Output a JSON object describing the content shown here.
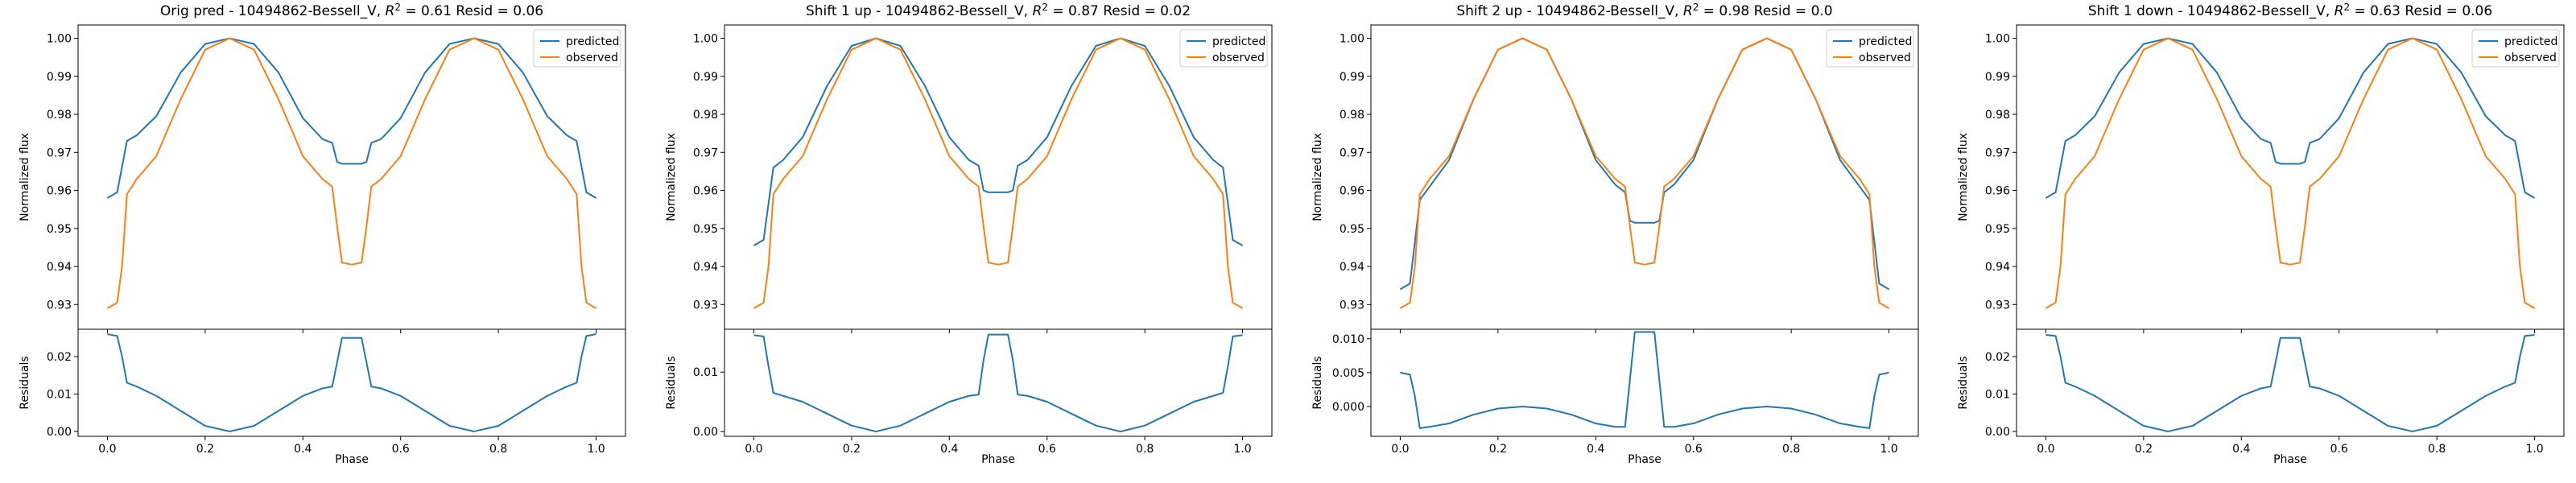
{
  "chart_data": [
    {
      "type": "line",
      "title_prefix": "Orig pred - 10494862-Bessell_V, ",
      "r2_value": "0.61",
      "resid_text": " Resid = 0.06",
      "ylabel": "Normalized flux",
      "ylabel_resid": "Residuals",
      "xlabel": "Phase",
      "xlim": [
        -0.06,
        1.06
      ],
      "ylim": [
        0.9235,
        1.0035
      ],
      "resid_ylim": [
        -0.0013,
        0.0273
      ],
      "yticks": [
        "0.93",
        "0.94",
        "0.95",
        "0.96",
        "0.97",
        "0.98",
        "0.99",
        "1.00"
      ],
      "resid_yticks": [
        "0.00",
        "0.01",
        "0.02"
      ],
      "xticks": [
        "0.0",
        "0.2",
        "0.4",
        "0.6",
        "0.8",
        "1.0"
      ],
      "legend": [
        "predicted",
        "observed"
      ],
      "legend_position": "top-right",
      "series": [
        {
          "name": "predicted",
          "color": "#1f77b4",
          "x": [
            0.0,
            0.02,
            0.04,
            0.06,
            0.1,
            0.15,
            0.2,
            0.25,
            0.3,
            0.35,
            0.4,
            0.44,
            0.46,
            0.47,
            0.48,
            0.5,
            0.52,
            0.53,
            0.54,
            0.56,
            0.6,
            0.65,
            0.7,
            0.75,
            0.8,
            0.85,
            0.9,
            0.94,
            0.96,
            0.98,
            1.0
          ],
          "y": [
            0.958,
            0.9595,
            0.973,
            0.9745,
            0.9795,
            0.991,
            0.9985,
            1.0,
            0.9985,
            0.991,
            0.979,
            0.9735,
            0.9725,
            0.9675,
            0.967,
            0.967,
            0.967,
            0.9675,
            0.9725,
            0.9735,
            0.979,
            0.991,
            0.9985,
            1.0,
            0.9985,
            0.991,
            0.9795,
            0.9745,
            0.973,
            0.9595,
            0.958
          ]
        },
        {
          "name": "observed",
          "color": "#ff7f0e",
          "x": [
            0.0,
            0.02,
            0.03,
            0.04,
            0.06,
            0.1,
            0.15,
            0.2,
            0.25,
            0.3,
            0.35,
            0.4,
            0.44,
            0.46,
            0.47,
            0.48,
            0.5,
            0.52,
            0.53,
            0.54,
            0.56,
            0.6,
            0.65,
            0.7,
            0.75,
            0.8,
            0.85,
            0.9,
            0.94,
            0.96,
            0.97,
            0.98,
            1.0
          ],
          "y": [
            0.929,
            0.9305,
            0.94,
            0.959,
            0.963,
            0.969,
            0.984,
            0.997,
            1.0,
            0.997,
            0.984,
            0.969,
            0.963,
            0.961,
            0.9505,
            0.941,
            0.9405,
            0.941,
            0.9505,
            0.961,
            0.963,
            0.969,
            0.984,
            0.997,
            1.0,
            0.997,
            0.984,
            0.969,
            0.963,
            0.959,
            0.94,
            0.9305,
            0.929
          ]
        }
      ],
      "residuals": {
        "x": [
          0.0,
          0.02,
          0.03,
          0.04,
          0.06,
          0.1,
          0.15,
          0.2,
          0.25,
          0.3,
          0.35,
          0.4,
          0.44,
          0.46,
          0.47,
          0.48,
          0.5,
          0.52,
          0.53,
          0.54,
          0.56,
          0.6,
          0.65,
          0.7,
          0.75,
          0.8,
          0.85,
          0.9,
          0.94,
          0.96,
          0.97,
          0.98,
          1.0
        ],
        "y": [
          0.026,
          0.0255,
          0.02,
          0.013,
          0.012,
          0.0095,
          0.0055,
          0.0015,
          0.0,
          0.0015,
          0.0055,
          0.0095,
          0.0115,
          0.012,
          0.0185,
          0.025,
          0.025,
          0.025,
          0.0185,
          0.012,
          0.0115,
          0.0095,
          0.0055,
          0.0015,
          0.0,
          0.0015,
          0.0055,
          0.0095,
          0.012,
          0.013,
          0.02,
          0.0255,
          0.026
        ]
      }
    },
    {
      "type": "line",
      "title_prefix": "Shift 1 up - 10494862-Bessell_V, ",
      "r2_value": "0.87",
      "resid_text": " Resid = 0.02",
      "ylabel": "Normalized flux",
      "ylabel_resid": "Residuals",
      "xlabel": "Phase",
      "xlim": [
        -0.06,
        1.06
      ],
      "ylim": [
        0.9235,
        1.0035
      ],
      "resid_ylim": [
        -0.0008,
        0.0172
      ],
      "yticks": [
        "0.93",
        "0.94",
        "0.95",
        "0.96",
        "0.97",
        "0.98",
        "0.99",
        "1.00"
      ],
      "resid_yticks": [
        "0.00",
        "0.01"
      ],
      "xticks": [
        "0.0",
        "0.2",
        "0.4",
        "0.6",
        "0.8",
        "1.0"
      ],
      "legend": [
        "predicted",
        "observed"
      ],
      "legend_position": "top-right",
      "series": [
        {
          "name": "predicted",
          "color": "#1f77b4",
          "x": [
            0.0,
            0.02,
            0.04,
            0.06,
            0.1,
            0.15,
            0.2,
            0.25,
            0.3,
            0.35,
            0.4,
            0.44,
            0.46,
            0.47,
            0.48,
            0.5,
            0.52,
            0.53,
            0.54,
            0.56,
            0.6,
            0.65,
            0.7,
            0.75,
            0.8,
            0.85,
            0.9,
            0.94,
            0.96,
            0.98,
            1.0
          ],
          "y": [
            0.9455,
            0.947,
            0.966,
            0.968,
            0.974,
            0.9875,
            0.998,
            1.0,
            0.998,
            0.9875,
            0.974,
            0.968,
            0.9665,
            0.96,
            0.9595,
            0.9595,
            0.9595,
            0.96,
            0.9665,
            0.968,
            0.974,
            0.9875,
            0.998,
            1.0,
            0.998,
            0.9875,
            0.974,
            0.968,
            0.966,
            0.947,
            0.9455
          ]
        },
        {
          "name": "observed",
          "color": "#ff7f0e",
          "x": [
            0.0,
            0.02,
            0.03,
            0.04,
            0.06,
            0.1,
            0.15,
            0.2,
            0.25,
            0.3,
            0.35,
            0.4,
            0.44,
            0.46,
            0.47,
            0.48,
            0.5,
            0.52,
            0.53,
            0.54,
            0.56,
            0.6,
            0.65,
            0.7,
            0.75,
            0.8,
            0.85,
            0.9,
            0.94,
            0.96,
            0.97,
            0.98,
            1.0
          ],
          "y": [
            0.929,
            0.9305,
            0.94,
            0.959,
            0.963,
            0.969,
            0.984,
            0.997,
            1.0,
            0.997,
            0.984,
            0.969,
            0.963,
            0.961,
            0.9505,
            0.941,
            0.9405,
            0.941,
            0.9505,
            0.961,
            0.963,
            0.969,
            0.984,
            0.997,
            1.0,
            0.997,
            0.984,
            0.969,
            0.963,
            0.959,
            0.94,
            0.9305,
            0.929
          ]
        }
      ],
      "residuals": {
        "x": [
          0.0,
          0.02,
          0.03,
          0.04,
          0.06,
          0.1,
          0.15,
          0.2,
          0.25,
          0.3,
          0.35,
          0.4,
          0.44,
          0.46,
          0.47,
          0.48,
          0.5,
          0.52,
          0.53,
          0.54,
          0.56,
          0.6,
          0.65,
          0.7,
          0.75,
          0.8,
          0.85,
          0.9,
          0.94,
          0.96,
          0.97,
          0.98,
          1.0
        ],
        "y": [
          0.0162,
          0.016,
          0.011,
          0.0065,
          0.006,
          0.005,
          0.003,
          0.001,
          0.0,
          0.001,
          0.003,
          0.005,
          0.006,
          0.0062,
          0.012,
          0.0163,
          0.0163,
          0.0163,
          0.012,
          0.0062,
          0.006,
          0.005,
          0.003,
          0.001,
          0.0,
          0.001,
          0.003,
          0.005,
          0.006,
          0.0065,
          0.011,
          0.016,
          0.0162
        ]
      }
    },
    {
      "type": "line",
      "title_prefix": "Shift 2 up - 10494862-Bessell_V, ",
      "r2_value": "0.98",
      "resid_text": " Resid = 0.0",
      "ylabel": "Normalized flux",
      "ylabel_resid": "Residuals",
      "xlabel": "Phase",
      "xlim": [
        -0.06,
        1.06
      ],
      "ylim": [
        0.9235,
        1.0035
      ],
      "resid_ylim": [
        -0.0044,
        0.0114
      ],
      "yticks": [
        "0.93",
        "0.94",
        "0.95",
        "0.96",
        "0.97",
        "0.98",
        "0.99",
        "1.00"
      ],
      "resid_yticks": [
        "0.000",
        "0.005",
        "0.010"
      ],
      "xticks": [
        "0.0",
        "0.2",
        "0.4",
        "0.6",
        "0.8",
        "1.0"
      ],
      "legend": [
        "predicted",
        "observed"
      ],
      "legend_position": "top-right",
      "series": [
        {
          "name": "predicted",
          "color": "#1f77b4",
          "x": [
            0.0,
            0.02,
            0.04,
            0.06,
            0.1,
            0.15,
            0.2,
            0.25,
            0.3,
            0.35,
            0.4,
            0.44,
            0.46,
            0.47,
            0.48,
            0.5,
            0.52,
            0.53,
            0.54,
            0.56,
            0.6,
            0.65,
            0.7,
            0.75,
            0.8,
            0.85,
            0.9,
            0.94,
            0.96,
            0.98,
            1.0
          ],
          "y": [
            0.934,
            0.9355,
            0.9575,
            0.961,
            0.968,
            0.984,
            0.997,
            1.0,
            0.997,
            0.984,
            0.968,
            0.9615,
            0.9595,
            0.952,
            0.9515,
            0.9515,
            0.9515,
            0.952,
            0.9595,
            0.9615,
            0.968,
            0.984,
            0.997,
            1.0,
            0.997,
            0.984,
            0.968,
            0.961,
            0.9575,
            0.9355,
            0.934
          ]
        },
        {
          "name": "observed",
          "color": "#ff7f0e",
          "x": [
            0.0,
            0.02,
            0.03,
            0.04,
            0.06,
            0.1,
            0.15,
            0.2,
            0.25,
            0.3,
            0.35,
            0.4,
            0.44,
            0.46,
            0.47,
            0.48,
            0.5,
            0.52,
            0.53,
            0.54,
            0.56,
            0.6,
            0.65,
            0.7,
            0.75,
            0.8,
            0.85,
            0.9,
            0.94,
            0.96,
            0.97,
            0.98,
            1.0
          ],
          "y": [
            0.929,
            0.9305,
            0.94,
            0.959,
            0.963,
            0.969,
            0.984,
            0.997,
            1.0,
            0.997,
            0.984,
            0.969,
            0.963,
            0.961,
            0.9505,
            0.941,
            0.9405,
            0.941,
            0.9505,
            0.961,
            0.963,
            0.969,
            0.984,
            0.997,
            1.0,
            0.997,
            0.984,
            0.969,
            0.963,
            0.959,
            0.94,
            0.9305,
            0.929
          ]
        }
      ],
      "residuals": {
        "x": [
          0.0,
          0.02,
          0.03,
          0.04,
          0.06,
          0.1,
          0.15,
          0.2,
          0.25,
          0.3,
          0.35,
          0.4,
          0.44,
          0.46,
          0.47,
          0.48,
          0.5,
          0.52,
          0.53,
          0.54,
          0.56,
          0.6,
          0.65,
          0.7,
          0.75,
          0.8,
          0.85,
          0.9,
          0.94,
          0.96,
          0.97,
          0.98,
          1.0
        ],
        "y": [
          0.005,
          0.0047,
          0.0015,
          -0.0032,
          -0.003,
          -0.0025,
          -0.0012,
          -0.0003,
          0.0,
          -0.0003,
          -0.0012,
          -0.0025,
          -0.003,
          -0.003,
          0.004,
          0.011,
          0.011,
          0.011,
          0.004,
          -0.003,
          -0.003,
          -0.0025,
          -0.0012,
          -0.0003,
          0.0,
          -0.0003,
          -0.0012,
          -0.0025,
          -0.003,
          -0.0032,
          0.0015,
          0.0047,
          0.005
        ]
      }
    },
    {
      "type": "line",
      "title_prefix": "Shift 1 down - 10494862-Bessell_V, ",
      "r2_value": "0.63",
      "resid_text": " Resid = 0.06",
      "ylabel": "Normalized flux",
      "ylabel_resid": "Residuals",
      "xlabel": "Phase",
      "xlim": [
        -0.06,
        1.06
      ],
      "ylim": [
        0.9235,
        1.0035
      ],
      "resid_ylim": [
        -0.0013,
        0.0273
      ],
      "yticks": [
        "0.93",
        "0.94",
        "0.95",
        "0.96",
        "0.97",
        "0.98",
        "0.99",
        "1.00"
      ],
      "resid_yticks": [
        "0.00",
        "0.01",
        "0.02"
      ],
      "xticks": [
        "0.0",
        "0.2",
        "0.4",
        "0.6",
        "0.8",
        "1.0"
      ],
      "legend": [
        "predicted",
        "observed"
      ],
      "legend_position": "top-right",
      "series": [
        {
          "name": "predicted",
          "color": "#1f77b4",
          "x": [
            0.0,
            0.02,
            0.04,
            0.06,
            0.1,
            0.15,
            0.2,
            0.25,
            0.3,
            0.35,
            0.4,
            0.44,
            0.46,
            0.47,
            0.48,
            0.5,
            0.52,
            0.53,
            0.54,
            0.56,
            0.6,
            0.65,
            0.7,
            0.75,
            0.8,
            0.85,
            0.9,
            0.94,
            0.96,
            0.98,
            1.0
          ],
          "y": [
            0.958,
            0.9595,
            0.973,
            0.9745,
            0.9795,
            0.991,
            0.9985,
            1.0,
            0.9985,
            0.991,
            0.979,
            0.9735,
            0.9725,
            0.9675,
            0.967,
            0.967,
            0.967,
            0.9675,
            0.9725,
            0.9735,
            0.979,
            0.991,
            0.9985,
            1.0,
            0.9985,
            0.991,
            0.9795,
            0.9745,
            0.973,
            0.9595,
            0.958
          ]
        },
        {
          "name": "observed",
          "color": "#ff7f0e",
          "x": [
            0.0,
            0.02,
            0.03,
            0.04,
            0.06,
            0.1,
            0.15,
            0.2,
            0.25,
            0.3,
            0.35,
            0.4,
            0.44,
            0.46,
            0.47,
            0.48,
            0.5,
            0.52,
            0.53,
            0.54,
            0.56,
            0.6,
            0.65,
            0.7,
            0.75,
            0.8,
            0.85,
            0.9,
            0.94,
            0.96,
            0.97,
            0.98,
            1.0
          ],
          "y": [
            0.929,
            0.9305,
            0.94,
            0.959,
            0.963,
            0.969,
            0.984,
            0.997,
            1.0,
            0.997,
            0.984,
            0.969,
            0.963,
            0.961,
            0.9505,
            0.941,
            0.9405,
            0.941,
            0.9505,
            0.961,
            0.963,
            0.969,
            0.984,
            0.997,
            1.0,
            0.997,
            0.984,
            0.969,
            0.963,
            0.959,
            0.94,
            0.9305,
            0.929
          ]
        }
      ],
      "residuals": {
        "x": [
          0.0,
          0.02,
          0.03,
          0.04,
          0.06,
          0.1,
          0.15,
          0.2,
          0.25,
          0.3,
          0.35,
          0.4,
          0.44,
          0.46,
          0.47,
          0.48,
          0.5,
          0.52,
          0.53,
          0.54,
          0.56,
          0.6,
          0.65,
          0.7,
          0.75,
          0.8,
          0.85,
          0.9,
          0.94,
          0.96,
          0.97,
          0.98,
          1.0
        ],
        "y": [
          0.0258,
          0.0255,
          0.02,
          0.013,
          0.012,
          0.0095,
          0.0055,
          0.0015,
          0.0,
          0.0015,
          0.0055,
          0.0095,
          0.0115,
          0.012,
          0.0185,
          0.025,
          0.025,
          0.025,
          0.0185,
          0.012,
          0.0115,
          0.0095,
          0.0055,
          0.0015,
          0.0,
          0.0015,
          0.0055,
          0.0095,
          0.012,
          0.013,
          0.02,
          0.0255,
          0.0258
        ]
      }
    }
  ]
}
